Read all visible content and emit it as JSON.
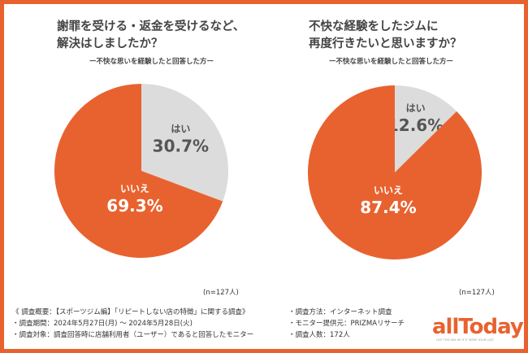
{
  "chart_data": [
    {
      "type": "pie",
      "title": "謝罪を受ける・返金を受けるなど、解決はしましたか？",
      "subtitle": "ー不快な思いを経験したと回答した方ー",
      "categories": [
        "はい",
        "いいえ"
      ],
      "values": [
        30.7,
        69.3
      ],
      "labels": [
        "30.7%",
        "69.3%"
      ],
      "colors": [
        "#dcdcdc",
        "#e8622f"
      ],
      "note": "(n=127人)"
    },
    {
      "type": "pie",
      "title": "不快な経験をしたジムに再度行きたいと思いますか？",
      "subtitle": "ー不快な思いを経験したと回答した方ー",
      "categories": [
        "はい",
        "いいえ"
      ],
      "values": [
        12.6,
        87.4
      ],
      "labels": [
        "12.6%",
        "87.4%"
      ],
      "colors": [
        "#dcdcdc",
        "#e8622f"
      ],
      "note": "(n=127人)"
    }
  ],
  "titles": [
    [
      "謝罪を受ける・返金を受けるなど、",
      "解決はしましたか？"
    ],
    [
      "不快な経験をしたジムに",
      "再度行きたいと思いますか？"
    ]
  ],
  "footer": {
    "left": [
      "《 調査概要：【スポーツジム編】「リピートしない店の特徴」に関する調査》",
      "・調査期間：2024年5月27日(月) ～ 2024年5月28日(火)",
      "・調査対象：調査回答時に店舗利用者（ユーザー）であると回答したモニター"
    ],
    "right": [
      "・調査方法：インターネット調査",
      "・モニター提供元：PRIZMAリサーチ",
      "・調査人数：172人"
    ]
  },
  "logo": {
    "text": "allToday",
    "tagline": "LIVE THIS DAY AS IF IT WERE YOUR LAST"
  },
  "border_color": "#e8622f"
}
